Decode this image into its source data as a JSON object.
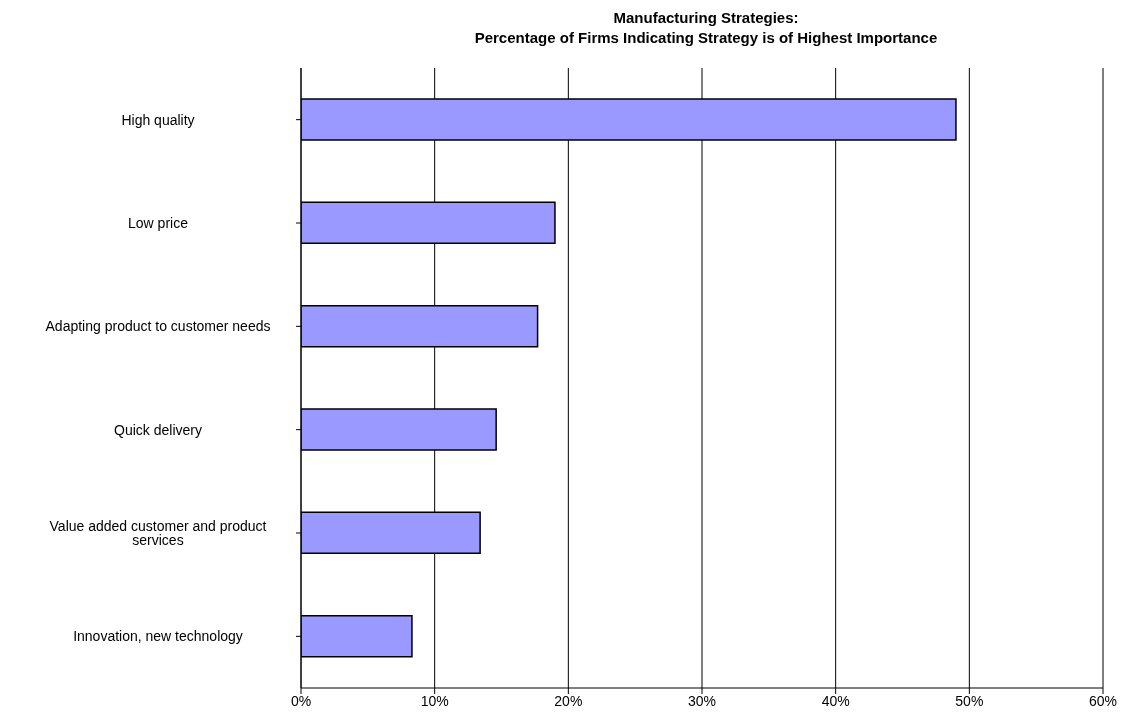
{
  "chart_data": {
    "type": "bar",
    "orientation": "horizontal",
    "title": "Manufacturing Strategies:",
    "subtitle": "Percentage of Firms Indicating Strategy is of Highest Importance",
    "categories": [
      "High quality",
      "Low price",
      "Adapting product to customer needs",
      "Quick delivery",
      "Value added customer and product services",
      "Innovation, new technology"
    ],
    "values": [
      49,
      19,
      17.7,
      14.6,
      13.4,
      8.3
    ],
    "color": "#9999ff",
    "xlim": [
      0,
      60
    ],
    "xticks": [
      {
        "value": 0,
        "label": "0%"
      },
      {
        "value": 10,
        "label": "10%"
      },
      {
        "value": 20,
        "label": "20%"
      },
      {
        "value": 30,
        "label": "30%"
      },
      {
        "value": 40,
        "label": "40%"
      },
      {
        "value": 50,
        "label": "50%"
      },
      {
        "value": 60,
        "label": "60%"
      }
    ],
    "grid": "x"
  }
}
